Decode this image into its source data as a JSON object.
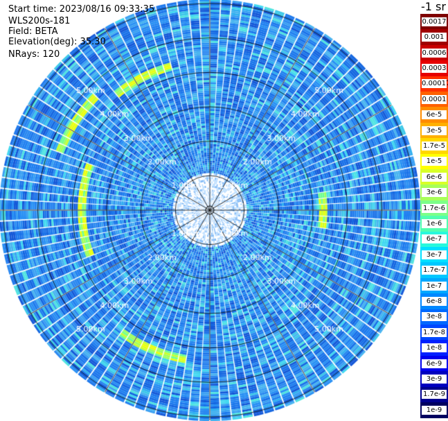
{
  "header": {
    "start_time": "Start time: 2023/08/16 09:33:35",
    "device": "WLS200s-181",
    "field": "Field: BETA",
    "elevation": "Elevation(deg): 35.30",
    "nrays": "NRays: 120"
  },
  "colorbar": {
    "title": "-1 sr",
    "labels": [
      "0.0017",
      "0.001",
      "0.0006",
      "0.0003",
      "0.00017",
      "0.0001",
      "6e-5",
      "3e-5",
      "1.7e-5",
      "1e-5",
      "6e-6",
      "3e-6",
      "1.7e-6",
      "1e-6",
      "6e-7",
      "3e-7",
      "1.7e-7",
      "1e-7",
      "6e-8",
      "3e-8",
      "1.7e-8",
      "1e-8",
      "6e-9",
      "3e-9",
      "1.7e-9",
      "1e-9"
    ],
    "colors": [
      "#7f0000",
      "#a00000",
      "#c80000",
      "#e60000",
      "#ff3000",
      "#ff6000",
      "#ff8c00",
      "#ffb000",
      "#ffd800",
      "#ffff00",
      "#d8ff28",
      "#a8ff58",
      "#7cff88",
      "#50ffb0",
      "#28f8dc",
      "#00e0ff",
      "#00c8ff",
      "#00a8ff",
      "#0088ff",
      "#0068ff",
      "#0048ff",
      "#0020ff",
      "#0000ee",
      "#0000c0",
      "#000090",
      "#000060"
    ]
  },
  "chart_data": {
    "type": "heatmap",
    "subtype": "polar-ppi",
    "nrays": 120,
    "range_unit": "km",
    "max_range_km": 6.1,
    "range_rings_km": [
      1,
      2,
      3,
      4,
      5,
      6
    ],
    "ring_labels": [
      "1.00km",
      "2.00km",
      "3.00km",
      "4.00km",
      "5.00km"
    ],
    "spoke_angles_deg": [
      0,
      30,
      60,
      90,
      120,
      150,
      180,
      210,
      240,
      270,
      300,
      330
    ],
    "background_level": "1e-8 to 6e-8",
    "enhanced_arcs": [
      {
        "from_deg": -70,
        "to_deg": -45,
        "range_km": 4.7,
        "level": "1e-6 to 1e-5"
      },
      {
        "from_deg": -40,
        "to_deg": -15,
        "range_km": 4.3,
        "level": "1e-6 to 1e-5"
      },
      {
        "from_deg": 80,
        "to_deg": 100,
        "range_km": 3.3,
        "level": "1e-6 to 1e-5"
      },
      {
        "from_deg": 250,
        "to_deg": 290,
        "range_km": 3.7,
        "level": "1e-7 to 1e-6"
      },
      {
        "from_deg": 190,
        "to_deg": 215,
        "range_km": 4.4,
        "level": "1e-7 to 1e-6"
      }
    ]
  }
}
